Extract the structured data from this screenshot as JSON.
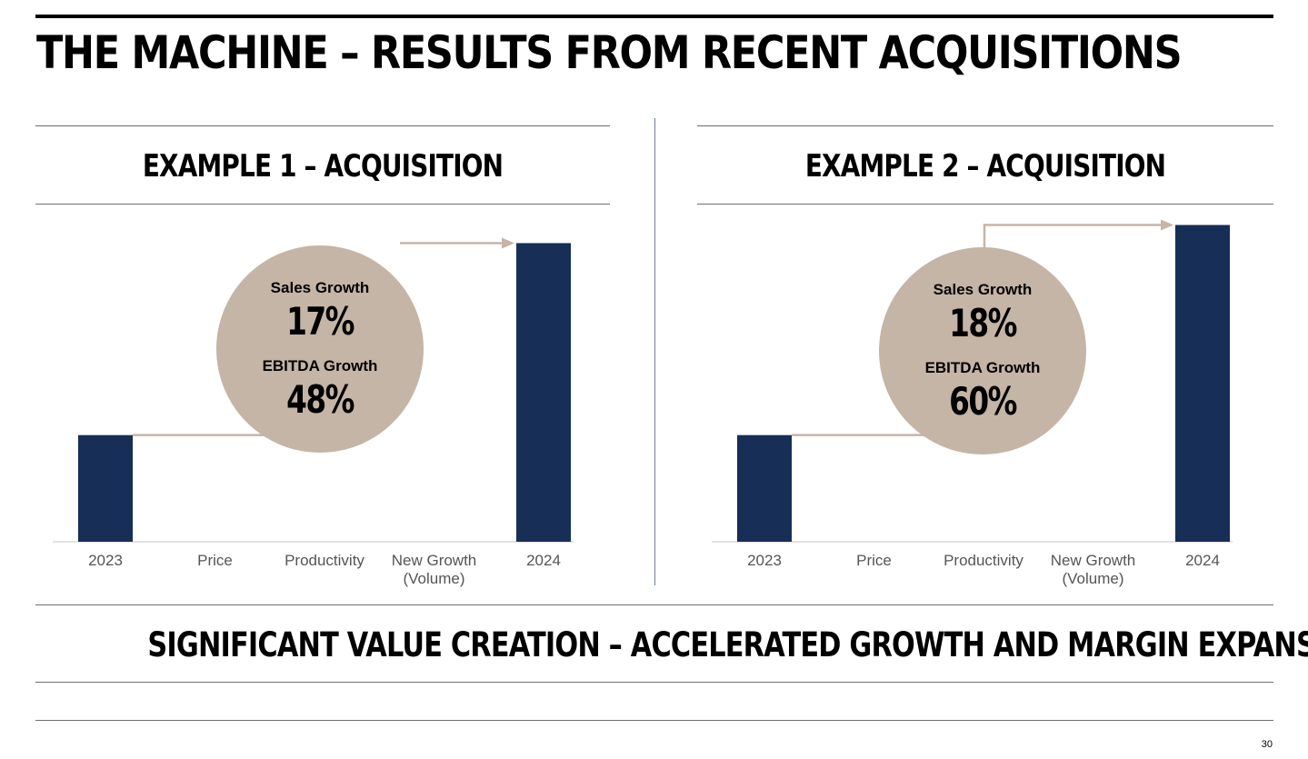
{
  "title": "THE MACHINE – RESULTS FROM RECENT ACQUISITIONS",
  "colors": {
    "bar": "#172e57",
    "circle": "#c5b5a6",
    "connector": "#c5b5a6",
    "axis": "#d9d9d9",
    "tick_text": "#555555"
  },
  "chart_data": [
    {
      "type": "bar",
      "title": "EXAMPLE 1 – ACQUISITION",
      "categories": [
        "2023",
        "Price",
        "Productivity",
        "New Growth (Volume)",
        "2024"
      ],
      "values": [
        100,
        null,
        null,
        null,
        280
      ],
      "ylim": [
        0,
        300
      ],
      "annotation": {
        "sales_growth_label": "Sales Growth",
        "sales_growth_value": "17%",
        "ebitda_growth_label": "EBITDA Growth",
        "ebitda_growth_value": "48%"
      }
    },
    {
      "type": "bar",
      "title": "EXAMPLE 2 – ACQUISITION",
      "categories": [
        "2023",
        "Price",
        "Productivity",
        "New Growth (Volume)",
        "2024"
      ],
      "values": [
        100,
        null,
        null,
        null,
        297
      ],
      "ylim": [
        0,
        300
      ],
      "annotation": {
        "sales_growth_label": "Sales Growth",
        "sales_growth_value": "18%",
        "ebitda_growth_label": "EBITDA Growth",
        "ebitda_growth_value": "60%"
      }
    }
  ],
  "footer_title": "SIGNIFICANT VALUE CREATION – ACCELERATED GROWTH AND MARGIN EXPANSION",
  "page_number": "30"
}
